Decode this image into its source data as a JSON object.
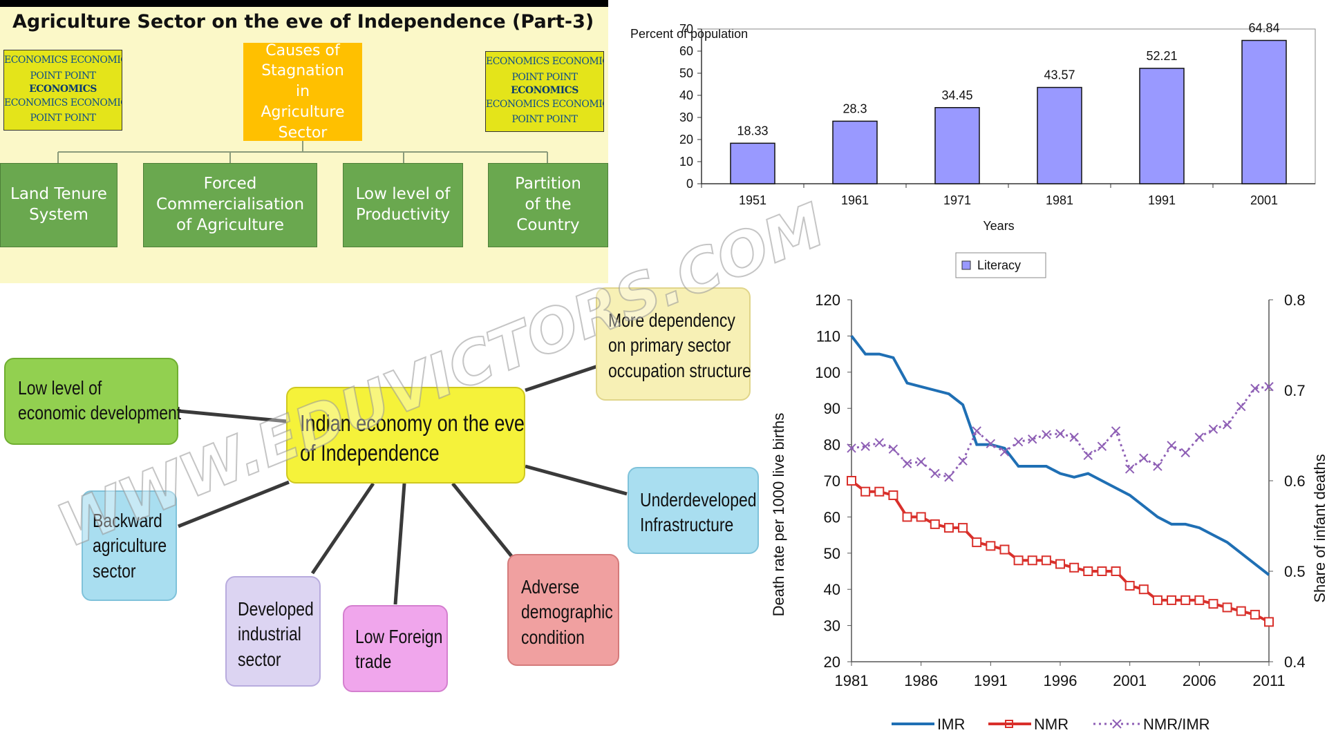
{
  "agri": {
    "title": "Agriculture Sector on the eve of Independence (Part-3)",
    "center_lines": [
      "Causes of",
      "Stagnation",
      "in",
      "Agriculture",
      "Sector"
    ],
    "boxes": [
      {
        "lines": [
          "Land Tenure",
          "System"
        ]
      },
      {
        "lines": [
          "Forced",
          "Commercialisation",
          "of Agriculture"
        ]
      },
      {
        "lines": [
          "Low level of",
          "Productivity"
        ]
      },
      {
        "lines": [
          "Partition",
          "of the",
          "Country"
        ]
      }
    ],
    "logo_lines": [
      "ECONOMICS ECONOMICS",
      "POINT POINT",
      "ECONOMICS",
      "ECONOMICS ECONOMICS",
      "POINT POINT"
    ],
    "colors": {
      "background": "#fbf8c8",
      "center": "#ffc000",
      "boxes": "#6aa84f",
      "logo": "#e4e41a"
    }
  },
  "mindmap": {
    "center_lines": [
      "Indian economy on the eve",
      "of Independence"
    ],
    "watermark": "WWW.EDUVICTORS.COM",
    "nodes": [
      {
        "lines": [
          "Low level of",
          "economic development"
        ],
        "color": "#92d050"
      },
      {
        "lines": [
          "More dependency",
          "on primary sector",
          "occupation structure"
        ],
        "color": "#f7f0b5"
      },
      {
        "lines": [
          "Backward",
          "agriculture",
          "sector"
        ],
        "color": "#a9def0"
      },
      {
        "lines": [
          "Underdeveloped",
          "Infrastructure"
        ],
        "color": "#a9def0"
      },
      {
        "lines": [
          "Developed",
          "industrial",
          "sector"
        ],
        "color": "#dcd4f2"
      },
      {
        "lines": [
          "Low Foreign",
          "trade"
        ],
        "color": "#f0a6ec"
      },
      {
        "lines": [
          "Adverse",
          "demographic",
          "condition"
        ],
        "color": "#f0a0a0"
      }
    ]
  },
  "chart_data": [
    {
      "type": "bar",
      "ylabel": "Percent of population",
      "xlabel": "Years",
      "categories": [
        "1951",
        "1961",
        "1971",
        "1981",
        "1991",
        "2001"
      ],
      "series": [
        {
          "name": "Literacy",
          "values": [
            18.33,
            28.3,
            34.45,
            43.57,
            52.21,
            64.84
          ]
        }
      ],
      "value_labels": [
        "18.33",
        "28.3",
        "34.45",
        "43.57",
        "52.21",
        "64.84"
      ],
      "ylim": [
        0,
        70
      ],
      "yticks": [
        "0",
        "10",
        "20",
        "30",
        "40",
        "50",
        "60",
        "70"
      ],
      "grid": false,
      "legend": "bottom",
      "bar_color": "#9999ff"
    },
    {
      "type": "line",
      "ylabel": "Death rate per 1000 live births",
      "y2label": "Share of infant deaths",
      "xticks": [
        "1981",
        "1986",
        "1991",
        "1996",
        "2001",
        "2006",
        "2011"
      ],
      "yticks": [
        "20",
        "30",
        "40",
        "50",
        "60",
        "70",
        "80",
        "90",
        "100",
        "110",
        "120"
      ],
      "y2ticks": [
        "0.4",
        "0.5",
        "0.6",
        "0.7",
        "0.8"
      ],
      "ylim": [
        20,
        120
      ],
      "y2lim": [
        0.4,
        0.8
      ],
      "xlim": [
        1981,
        2011
      ],
      "legend": "bottom",
      "x": [
        1981,
        1982,
        1983,
        1984,
        1985,
        1986,
        1987,
        1988,
        1989,
        1990,
        1991,
        1992,
        1993,
        1994,
        1995,
        1996,
        1997,
        1998,
        1999,
        2000,
        2001,
        2002,
        2003,
        2004,
        2005,
        2006,
        2007,
        2008,
        2009,
        2010,
        2011
      ],
      "series": [
        {
          "name": "IMR",
          "axis": "left",
          "color": "#1f6fb4",
          "marker": "none",
          "values": [
            110,
            105,
            105,
            104,
            97,
            96,
            95,
            94,
            91,
            80,
            80,
            79,
            74,
            74,
            74,
            72,
            71,
            72,
            70,
            68,
            66,
            63,
            60,
            58,
            58,
            57,
            55,
            53,
            50,
            47,
            44
          ]
        },
        {
          "name": "NMR",
          "axis": "left",
          "color": "#d9302b",
          "marker": "square",
          "values": [
            70,
            67,
            67,
            66,
            60,
            60,
            58,
            57,
            57,
            53,
            52,
            51,
            48,
            48,
            48,
            47,
            46,
            45,
            45,
            45,
            41,
            40,
            37,
            37,
            37,
            37,
            36,
            35,
            34,
            33,
            31
          ]
        },
        {
          "name": "NMR/IMR",
          "axis": "right",
          "color": "#8e5fb5",
          "marker": "x",
          "values": [
            0.636,
            0.638,
            0.642,
            0.635,
            0.619,
            0.621,
            0.608,
            0.604,
            0.622,
            0.655,
            0.641,
            0.632,
            0.643,
            0.646,
            0.651,
            0.652,
            0.648,
            0.628,
            0.638,
            0.655,
            0.613,
            0.625,
            0.616,
            0.639,
            0.631,
            0.648,
            0.657,
            0.662,
            0.682,
            0.702,
            0.704
          ]
        }
      ]
    }
  ]
}
